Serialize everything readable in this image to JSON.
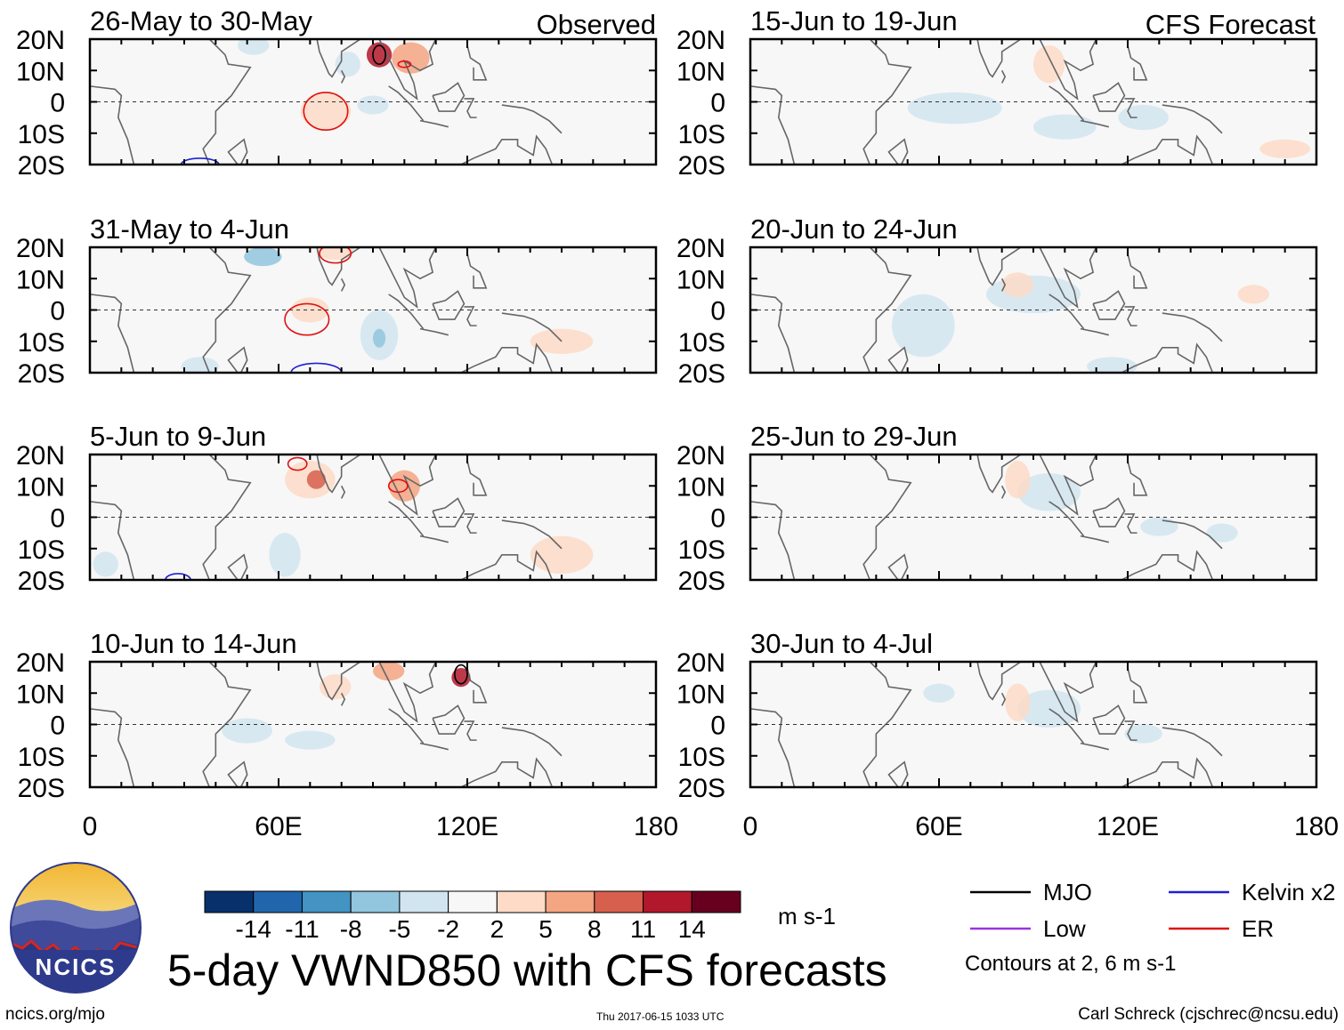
{
  "main_title": "5-day VWND850 with CFS forecasts",
  "footer": {
    "left": "ncics.org/mjo",
    "center": "Thu 2017-06-15 1033 UTC",
    "right": "Carl Schreck (cjschrec@ncsu.edu)"
  },
  "logo_text": "NCICS",
  "column_labels": {
    "left": "Observed",
    "right": "CFS Forecast"
  },
  "colorbar": {
    "unit": "m s-1",
    "colors": [
      "#08306b",
      "#2166ac",
      "#4393c3",
      "#92c5de",
      "#d1e5f0",
      "#f7f7f7",
      "#fddbc7",
      "#f4a582",
      "#d6604d",
      "#b2182b",
      "#67001f"
    ],
    "tick_labels": [
      "-14",
      "-11",
      "-8",
      "-5",
      "-2",
      "2",
      "5",
      "8",
      "11",
      "14"
    ]
  },
  "legend": {
    "items": [
      {
        "label": "MJO",
        "color": "#000000"
      },
      {
        "label": "Kelvin x2",
        "color": "#1f1fd6"
      },
      {
        "label": "Low",
        "color": "#9933dd"
      },
      {
        "label": "ER",
        "color": "#e01010"
      }
    ],
    "note": "Contours at 2, 6 m s-1"
  },
  "chart_data": [
    {
      "type": "heatmap",
      "panel": "observed-1",
      "title": "26-May to 30-May",
      "column": "Observed",
      "x_ticks": [
        "0",
        "60E",
        "120E",
        "180"
      ],
      "y_ticks": [
        "20N",
        "10N",
        "0",
        "10S",
        "20S"
      ],
      "xlim": [
        0,
        180
      ],
      "ylim": [
        -20,
        20
      ]
    },
    {
      "type": "heatmap",
      "panel": "observed-2",
      "title": "31-May to 4-Jun",
      "column": "Observed",
      "x_ticks": [
        "0",
        "60E",
        "120E",
        "180"
      ],
      "y_ticks": [
        "20N",
        "10N",
        "0",
        "10S",
        "20S"
      ],
      "xlim": [
        0,
        180
      ],
      "ylim": [
        -20,
        20
      ]
    },
    {
      "type": "heatmap",
      "panel": "observed-3",
      "title": "5-Jun to 9-Jun",
      "column": "Observed",
      "x_ticks": [
        "0",
        "60E",
        "120E",
        "180"
      ],
      "y_ticks": [
        "20N",
        "10N",
        "0",
        "10S",
        "20S"
      ],
      "xlim": [
        0,
        180
      ],
      "ylim": [
        -20,
        20
      ]
    },
    {
      "type": "heatmap",
      "panel": "observed-4",
      "title": "10-Jun to 14-Jun",
      "column": "Observed",
      "x_ticks": [
        "0",
        "60E",
        "120E",
        "180"
      ],
      "y_ticks": [
        "20N",
        "10N",
        "0",
        "10S",
        "20S"
      ],
      "xlim": [
        0,
        180
      ],
      "ylim": [
        -20,
        20
      ]
    },
    {
      "type": "heatmap",
      "panel": "forecast-1",
      "title": "15-Jun to 19-Jun",
      "column": "CFS Forecast",
      "x_ticks": [
        "0",
        "60E",
        "120E",
        "180"
      ],
      "y_ticks": [
        "20N",
        "10N",
        "0",
        "10S",
        "20S"
      ],
      "xlim": [
        0,
        180
      ],
      "ylim": [
        -20,
        20
      ]
    },
    {
      "type": "heatmap",
      "panel": "forecast-2",
      "title": "20-Jun to 24-Jun",
      "column": "CFS Forecast",
      "x_ticks": [
        "0",
        "60E",
        "120E",
        "180"
      ],
      "y_ticks": [
        "20N",
        "10N",
        "0",
        "10S",
        "20S"
      ],
      "xlim": [
        0,
        180
      ],
      "ylim": [
        -20,
        20
      ]
    },
    {
      "type": "heatmap",
      "panel": "forecast-3",
      "title": "25-Jun to 29-Jun",
      "column": "CFS Forecast",
      "x_ticks": [
        "0",
        "60E",
        "120E",
        "180"
      ],
      "y_ticks": [
        "20N",
        "10N",
        "0",
        "10S",
        "20S"
      ],
      "xlim": [
        0,
        180
      ],
      "ylim": [
        -20,
        20
      ]
    },
    {
      "type": "heatmap",
      "panel": "forecast-4",
      "title": "30-Jun to 4-Jul",
      "column": "CFS Forecast",
      "x_ticks": [
        "0",
        "60E",
        "120E",
        "180"
      ],
      "y_ticks": [
        "20N",
        "10N",
        "0",
        "10S",
        "20S"
      ],
      "xlim": [
        0,
        180
      ],
      "ylim": [
        -20,
        20
      ]
    }
  ]
}
